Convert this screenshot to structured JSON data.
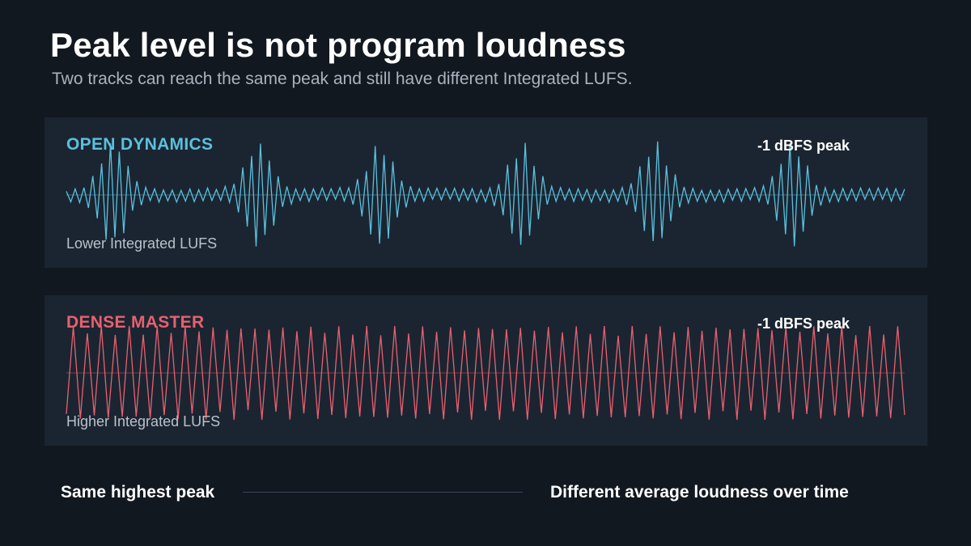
{
  "header": {
    "title": "Peak level is not program loudness",
    "subtitle": "Two tracks can reach the same peak and still have different Integrated LUFS."
  },
  "panels": [
    {
      "label": "OPEN DYNAMICS",
      "peak_label": "-1 dBFS peak",
      "lufs_label": "Lower Integrated LUFS",
      "color": "#5bc0de"
    },
    {
      "label": "DENSE MASTER",
      "peak_label": "-1 dBFS peak",
      "lufs_label": "Higher Integrated LUFS",
      "color": "#e8606f"
    }
  ],
  "footer": {
    "left": "Same highest peak",
    "right": "Different average loudness over time"
  }
}
